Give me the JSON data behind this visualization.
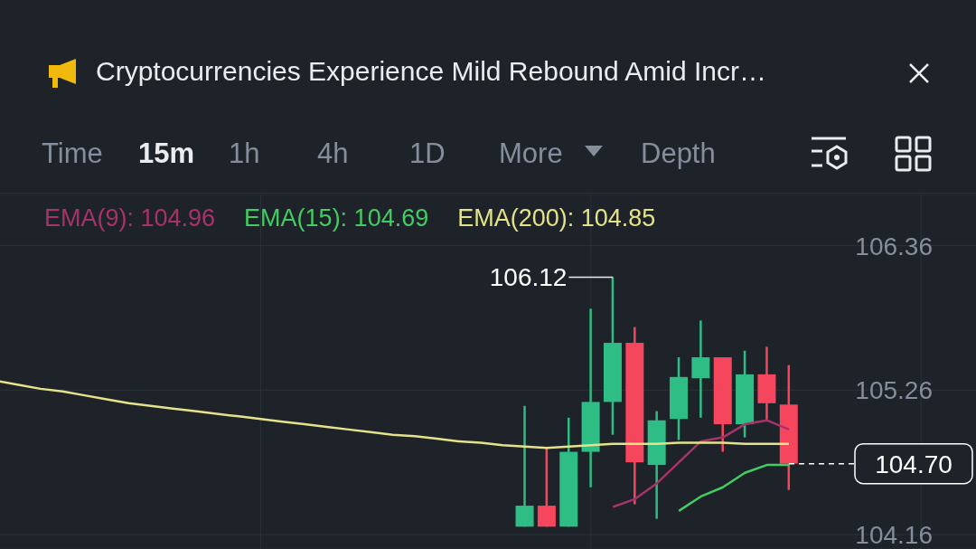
{
  "chart_data": {
    "type": "candlestick",
    "title": "Cryptocurrencies Experience Mild Rebound Amid Incr…",
    "annotations": [
      "106.12",
      "Time",
      "15m",
      "1h",
      "4h",
      "1D",
      "More",
      "Depth"
    ],
    "categories": [
      null,
      null,
      null,
      null,
      null,
      null,
      null,
      null,
      null,
      null,
      null,
      null,
      null,
      null,
      null,
      null,
      null,
      null,
      null,
      null,
      null,
      null,
      null,
      null,
      null,
      null,
      null,
      null,
      null,
      null,
      null,
      null,
      null,
      null,
      null,
      null,
      null,
      null,
      null,
      null,
      null,
      null,
      null,
      null,
      null
    ],
    "ohlc": [
      null,
      null,
      null,
      null,
      null,
      null,
      null,
      null,
      null,
      null,
      null,
      null,
      null,
      null,
      null,
      null,
      null,
      null,
      null,
      null,
      null,
      null,
      null,
      null,
      [
        104.22,
        105.14,
        104.22,
        104.38
      ],
      [
        104.38,
        104.82,
        104.22,
        104.22
      ],
      [
        104.22,
        105.05,
        104.22,
        104.79
      ],
      [
        104.79,
        105.88,
        104.52,
        105.17
      ],
      [
        105.17,
        106.12,
        104.92,
        105.62
      ],
      [
        105.62,
        105.74,
        104.39,
        104.71
      ],
      [
        104.69,
        105.1,
        104.28,
        105.03
      ],
      [
        105.04,
        105.51,
        104.88,
        105.36
      ],
      [
        105.35,
        105.79,
        105.05,
        105.51
      ],
      [
        105.51,
        105.51,
        104.79,
        105.0
      ],
      [
        105.0,
        105.56,
        104.9,
        105.38
      ],
      [
        105.38,
        105.59,
        105.03,
        105.16
      ],
      [
        105.15,
        105.45,
        104.5,
        104.7
      ],
      null,
      null,
      null,
      null,
      null,
      null,
      null,
      null
    ],
    "colors": [
      null,
      null,
      null,
      null,
      null,
      null,
      null,
      null,
      null,
      null,
      null,
      null,
      null,
      null,
      null,
      null,
      null,
      null,
      null,
      null,
      null,
      null,
      null,
      null,
      "#2ebd85",
      "#f6465d",
      "#2ebd85",
      "#2ebd85",
      "#2ebd85",
      "#f6465d",
      "#2ebd85",
      "#2ebd85",
      "#2ebd85",
      "#f6465d",
      "#2ebd85",
      "#f6465d",
      "#f6465d",
      null,
      null,
      null,
      null,
      null,
      null,
      null,
      null
    ],
    "series": [
      {
        "name": "EMA(9): 104.96",
        "type": "line",
        "color": "#a8326a",
        "values": [
          null,
          null,
          null,
          null,
          null,
          null,
          null,
          null,
          null,
          null,
          null,
          null,
          null,
          null,
          null,
          null,
          null,
          null,
          null,
          null,
          null,
          null,
          null,
          null,
          null,
          null,
          null,
          null,
          104.37,
          104.43,
          104.55,
          104.71,
          104.87,
          104.9,
          105.0,
          105.03,
          104.96,
          null,
          null,
          null,
          null,
          null,
          null,
          null,
          null
        ]
      },
      {
        "name": "EMA(15): 104.69",
        "type": "line",
        "color": "#43cc63",
        "values": [
          null,
          null,
          null,
          null,
          null,
          null,
          null,
          null,
          null,
          null,
          null,
          null,
          null,
          null,
          null,
          null,
          null,
          null,
          null,
          null,
          null,
          null,
          null,
          null,
          null,
          null,
          null,
          null,
          null,
          null,
          null,
          104.34,
          104.45,
          104.52,
          104.63,
          104.69,
          104.69,
          null,
          null,
          null,
          null,
          null,
          null,
          null,
          null
        ]
      },
      {
        "name": "EMA(200): 104.85",
        "type": "line",
        "color": "#e4e38a",
        "values": [
          105.33,
          105.3,
          105.27,
          105.25,
          105.22,
          105.19,
          105.16,
          105.14,
          105.12,
          105.1,
          105.08,
          105.06,
          105.04,
          105.02,
          105.0,
          104.98,
          104.96,
          104.94,
          104.92,
          104.91,
          104.89,
          104.87,
          104.86,
          104.84,
          104.83,
          104.82,
          104.83,
          104.84,
          104.85,
          104.85,
          104.85,
          104.86,
          104.86,
          104.86,
          104.85,
          104.85,
          104.85,
          null,
          null,
          null,
          null,
          null,
          null,
          null,
          null
        ]
      }
    ],
    "ylim": [
      104.05,
      106.75
    ],
    "yticks": [
      104.16,
      105.26,
      106.36
    ],
    "tick_labels": "y",
    "grid": true,
    "legend": "top left",
    "ref_lines": [
      {
        "axis": "y",
        "value": 104.7,
        "label": "104.70",
        "color": "#ffffff",
        "line_style": "dashed"
      }
    ]
  }
}
